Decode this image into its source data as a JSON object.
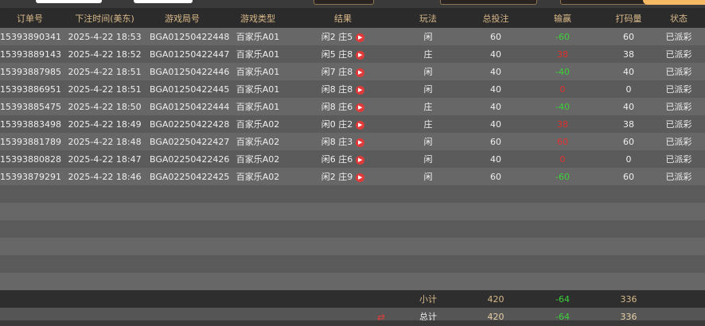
{
  "headers": [
    "订单号",
    "下注时间(美东)",
    "游戏局号",
    "游戏类型",
    "结果",
    "玩法",
    "总投注",
    "输赢",
    "打码量",
    "状态"
  ],
  "rows": [
    {
      "order": "15393890341",
      "time": "2025-4-22 18:53",
      "round": "BGA01250422448",
      "game": "百家乐A01",
      "result": "闲2 庄5",
      "play": "闲",
      "bet": "60",
      "winloss": "-60",
      "valid": "60",
      "status": "已派彩"
    },
    {
      "order": "15393889143",
      "time": "2025-4-22 18:52",
      "round": "BGA01250422447",
      "game": "百家乐A01",
      "result": "闲5 庄8",
      "play": "庄",
      "bet": "40",
      "winloss": "38",
      "valid": "38",
      "status": "已派彩"
    },
    {
      "order": "15393887985",
      "time": "2025-4-22 18:51",
      "round": "BGA01250422446",
      "game": "百家乐A01",
      "result": "闲7 庄8",
      "play": "闲",
      "bet": "40",
      "winloss": "-40",
      "valid": "40",
      "status": "已派彩"
    },
    {
      "order": "15393886951",
      "time": "2025-4-22 18:51",
      "round": "BGA01250422445",
      "game": "百家乐A01",
      "result": "闲8 庄8",
      "play": "闲",
      "bet": "40",
      "winloss": "0",
      "valid": "0",
      "status": "已派彩"
    },
    {
      "order": "15393885475",
      "time": "2025-4-22 18:50",
      "round": "BGA01250422444",
      "game": "百家乐A01",
      "result": "闲8 庄6",
      "play": "庄",
      "bet": "40",
      "winloss": "-40",
      "valid": "40",
      "status": "已派彩"
    },
    {
      "order": "15393883498",
      "time": "2025-4-22 18:49",
      "round": "BGA02250422428",
      "game": "百家乐A02",
      "result": "闲0 庄2",
      "play": "庄",
      "bet": "40",
      "winloss": "38",
      "valid": "38",
      "status": "已派彩"
    },
    {
      "order": "15393881789",
      "time": "2025-4-22 18:48",
      "round": "BGA02250422427",
      "game": "百家乐A02",
      "result": "闲8 庄3",
      "play": "闲",
      "bet": "60",
      "winloss": "60",
      "valid": "60",
      "status": "已派彩"
    },
    {
      "order": "15393880828",
      "time": "2025-4-22 18:47",
      "round": "BGA02250422426",
      "game": "百家乐A02",
      "result": "闲6 庄6",
      "play": "闲",
      "bet": "40",
      "winloss": "0",
      "valid": "0",
      "status": "已派彩"
    },
    {
      "order": "15393879291",
      "time": "2025-4-22 18:46",
      "round": "BGA02250422425",
      "game": "百家乐A02",
      "result": "闲2 庄9",
      "play": "闲",
      "bet": "60",
      "winloss": "-60",
      "valid": "60",
      "status": "已派彩"
    }
  ],
  "subtotal": {
    "label": "小计",
    "bet": "420",
    "winloss": "-64",
    "valid": "336"
  },
  "total": {
    "label": "总计",
    "bet": "420",
    "winloss": "-64",
    "valid": "336"
  },
  "colors": {
    "header_text": "#d9b98a",
    "loss": "#3bd13b",
    "win": "#e03030"
  }
}
